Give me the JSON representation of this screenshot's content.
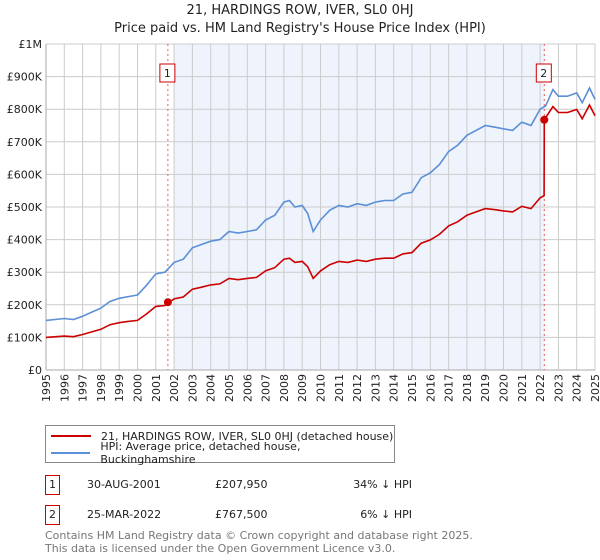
{
  "chart_data": {
    "type": "line",
    "title": "21, HARDINGS ROW, IVER, SL0 0HJ",
    "subtitle": "Price paid vs. HM Land Registry's House Price Index (HPI)",
    "xlim": [
      1995,
      2025
    ],
    "ylim": [
      0,
      1000000
    ],
    "x_ticks": [
      "1995",
      "1996",
      "1997",
      "1998",
      "1999",
      "2000",
      "2001",
      "2002",
      "2003",
      "2004",
      "2005",
      "2006",
      "2007",
      "2008",
      "2009",
      "2010",
      "2011",
      "2012",
      "2013",
      "2014",
      "2015",
      "2016",
      "2017",
      "2018",
      "2019",
      "2020",
      "2021",
      "2022",
      "2023",
      "2024",
      "2025"
    ],
    "y_ticks": [
      {
        "v": 0,
        "label": "£0"
      },
      {
        "v": 100000,
        "label": "£100K"
      },
      {
        "v": 200000,
        "label": "£200K"
      },
      {
        "v": 300000,
        "label": "£300K"
      },
      {
        "v": 400000,
        "label": "£400K"
      },
      {
        "v": 500000,
        "label": "£500K"
      },
      {
        "v": 600000,
        "label": "£600K"
      },
      {
        "v": 700000,
        "label": "£700K"
      },
      {
        "v": 800000,
        "label": "£800K"
      },
      {
        "v": 900000,
        "label": "£900K"
      },
      {
        "v": 1000000,
        "label": "£1M"
      }
    ],
    "grid": true,
    "shaded_range": [
      2002,
      2022.23
    ],
    "series": [
      {
        "name": "21, HARDINGS ROW, IVER, SL0 0HJ (detached house)",
        "color": "#cc0000",
        "x": [
          1995,
          1996,
          1996.5,
          1997,
          1998,
          1998.5,
          1999,
          1999.5,
          2000,
          2000.5,
          2001,
          2001.5,
          2002,
          2002.5,
          2003,
          2003.5,
          2004,
          2004.5,
          2005,
          2005.5,
          2006,
          2006.5,
          2007,
          2007.5,
          2008,
          2008.3,
          2008.6,
          2009,
          2009.3,
          2009.6,
          2010,
          2010.5,
          2011,
          2011.5,
          2012,
          2012.5,
          2013,
          2013.5,
          2014,
          2014.5,
          2015,
          2015.5,
          2016,
          2016.5,
          2017,
          2017.5,
          2018,
          2018.5,
          2019,
          2019.5,
          2020,
          2020.5,
          2021,
          2021.5,
          2022,
          2022.22,
          2022.23,
          2022.7,
          2023,
          2023.5,
          2024,
          2024.3,
          2024.7,
          2025
        ],
        "y": [
          100,
          104,
          102,
          109,
          125,
          139,
          145,
          149,
          152,
          172,
          195,
          198,
          218,
          224,
          248,
          254,
          261,
          264,
          281,
          277,
          281,
          284,
          304,
          314,
          340,
          343,
          330,
          333,
          317,
          281,
          304,
          323,
          333,
          330,
          337,
          333,
          340,
          343,
          343,
          356,
          360,
          389,
          399,
          416,
          442,
          455,
          475,
          485,
          495,
          492,
          488,
          485,
          502,
          495,
          528,
          535,
          767.5,
          808,
          790,
          790,
          799,
          771,
          813,
          780
        ]
      },
      {
        "name": "HPI: Average price, detached house, Buckinghamshire",
        "color": "#5b8fd6",
        "x": [
          1995,
          1996,
          1996.5,
          1997,
          1998,
          1998.5,
          1999,
          1999.5,
          2000,
          2000.5,
          2001,
          2001.5,
          2002,
          2002.5,
          2003,
          2003.5,
          2004,
          2004.5,
          2005,
          2005.5,
          2006,
          2006.5,
          2007,
          2007.5,
          2008,
          2008.3,
          2008.6,
          2009,
          2009.3,
          2009.6,
          2010,
          2010.5,
          2011,
          2011.5,
          2012,
          2012.5,
          2013,
          2013.5,
          2014,
          2014.5,
          2015,
          2015.5,
          2016,
          2016.5,
          2017,
          2017.5,
          2018,
          2018.5,
          2019,
          2019.5,
          2020,
          2020.5,
          2021,
          2021.5,
          2022,
          2022.3,
          2022.7,
          2023,
          2023.5,
          2024,
          2024.3,
          2024.7,
          2025
        ],
        "y": [
          152,
          158,
          155,
          165,
          190,
          210,
          220,
          225,
          230,
          260,
          295,
          300,
          330,
          340,
          375,
          385,
          395,
          400,
          425,
          420,
          425,
          430,
          460,
          475,
          515,
          520,
          500,
          505,
          480,
          425,
          460,
          490,
          505,
          500,
          510,
          505,
          515,
          520,
          520,
          540,
          545,
          590,
          605,
          630,
          670,
          690,
          720,
          735,
          750,
          745,
          740,
          735,
          760,
          750,
          800,
          810,
          860,
          840,
          840,
          850,
          820,
          865,
          830
        ]
      }
    ],
    "y_units": "thousands GBP",
    "sales": [
      {
        "id": "1",
        "x": 2001.66,
        "y": 207.95,
        "date": "30-AUG-2001",
        "price": "£207,950",
        "hpi": "34% ↓ HPI"
      },
      {
        "id": "2",
        "x": 2022.23,
        "y": 767.5,
        "date": "25-MAR-2022",
        "price": "£767,500",
        "hpi": "6% ↓ HPI"
      }
    ],
    "legend_placement": "bottom"
  },
  "footer": {
    "line1": "Contains HM Land Registry data © Crown copyright and database right 2025.",
    "line2": "This data is licensed under the Open Government Licence v3.0."
  }
}
